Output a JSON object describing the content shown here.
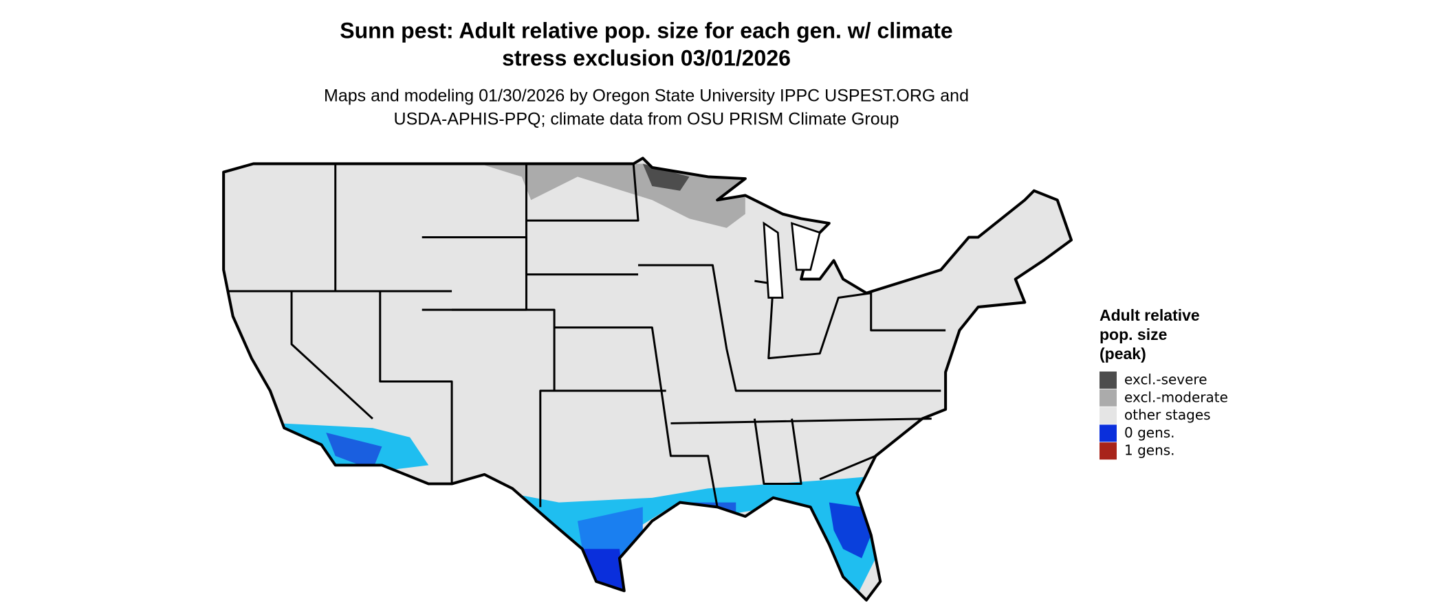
{
  "title": [
    "Sunn pest: Adult relative pop. size for each gen. w/ climate",
    "stress exclusion 03/01/2026"
  ],
  "subtitle": [
    "Maps and modeling 01/30/2026 by Oregon State University IPPC USPEST.ORG and",
    "USDA-APHIS-PPQ; climate data from OSU PRISM Climate Group"
  ],
  "legend": {
    "title": [
      "Adult relative",
      "pop. size",
      "(peak)"
    ],
    "items": [
      {
        "label": "excl.-severe",
        "color": "#4d4d4d"
      },
      {
        "label": "excl.-moderate",
        "color": "#ababab"
      },
      {
        "label": "other stages",
        "color": "#e5e5e5"
      },
      {
        "label": "0 gens.",
        "color": "#0a2fdc"
      },
      {
        "label": "1 gens.",
        "color": "#a8241a"
      }
    ]
  }
}
